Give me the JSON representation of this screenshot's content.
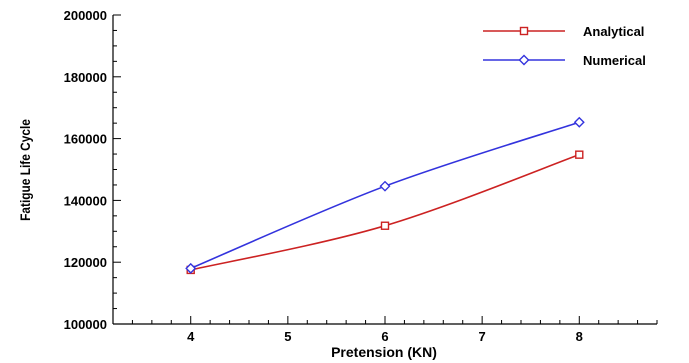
{
  "chart_data": {
    "type": "line",
    "title": "",
    "xlabel": "Pretension (KN)",
    "ylabel": "Fatigue Life Cycle",
    "x": [
      4,
      6,
      8
    ],
    "xlim": [
      3.2,
      8.8
    ],
    "ylim": [
      100000,
      200000
    ],
    "x_ticks": [
      4,
      5,
      6,
      7,
      8
    ],
    "x_tick_labels": [
      "4",
      "5",
      "6",
      "7",
      "8"
    ],
    "y_ticks": [
      100000,
      120000,
      140000,
      160000,
      180000,
      200000
    ],
    "y_tick_labels": [
      "100000",
      "120000",
      "140000",
      "160000",
      "180000",
      "200000"
    ],
    "grid": false,
    "legend_position": "top-right",
    "series": [
      {
        "name": "Analytical",
        "color": "#cc2222",
        "marker": "square",
        "values": [
          117500,
          131800,
          154800
        ]
      },
      {
        "name": "Numerical",
        "color": "#3333dd",
        "marker": "diamond",
        "values": [
          118000,
          144600,
          165300
        ]
      }
    ]
  }
}
